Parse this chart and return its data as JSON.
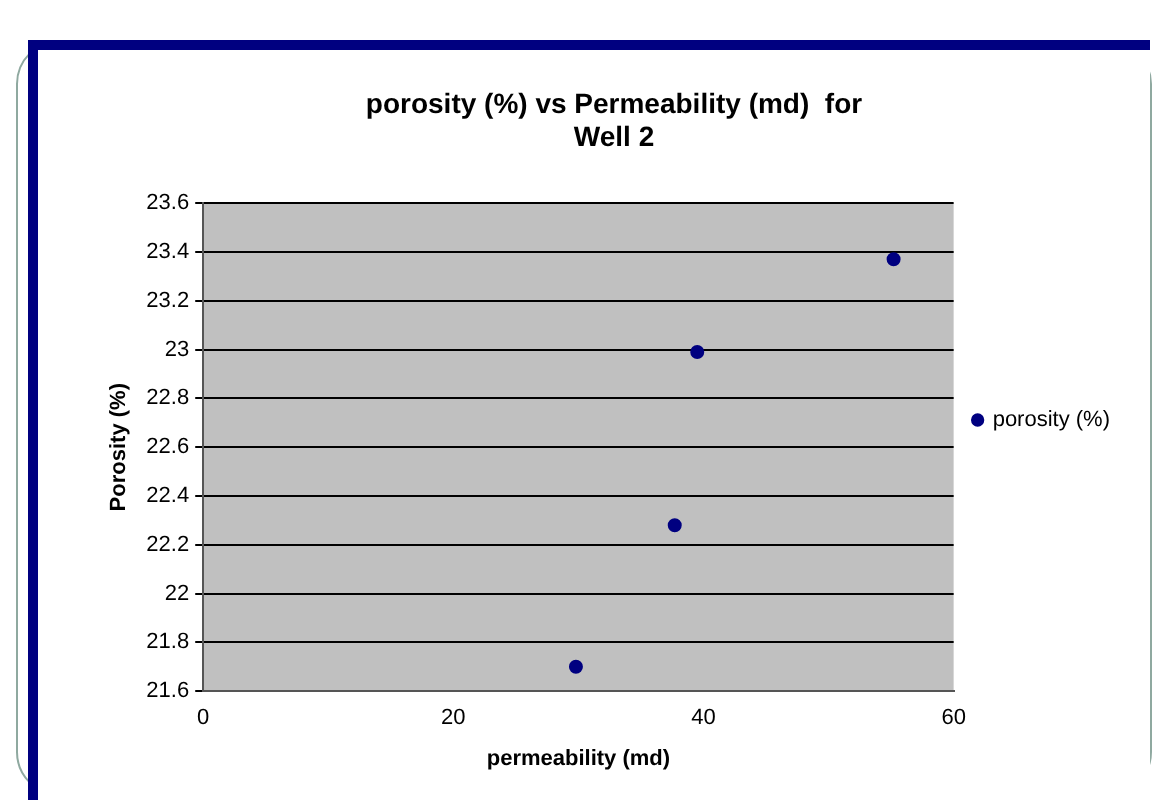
{
  "chart_data": {
    "type": "scatter",
    "title": [
      "porosity (%) vs Permeability (md)  for",
      "Well 2"
    ],
    "xlabel": "permeability (md)",
    "ylabel": "Porosity (%)",
    "x": [
      29.8,
      37.7,
      39.5,
      55.2
    ],
    "series": [
      {
        "name": "porosity (%)",
        "color": "#000080",
        "values": [
          21.7,
          22.28,
          22.99,
          23.37
        ]
      }
    ],
    "xlim": [
      0,
      60
    ],
    "xticks": [
      0,
      20,
      40,
      60
    ],
    "ylim": [
      21.6,
      23.6
    ],
    "yticks": [
      21.6,
      21.8,
      22,
      22.2,
      22.4,
      22.6,
      22.8,
      23,
      23.2,
      23.4,
      23.6
    ],
    "grid": "y",
    "legend": "right",
    "marker": "circle"
  }
}
